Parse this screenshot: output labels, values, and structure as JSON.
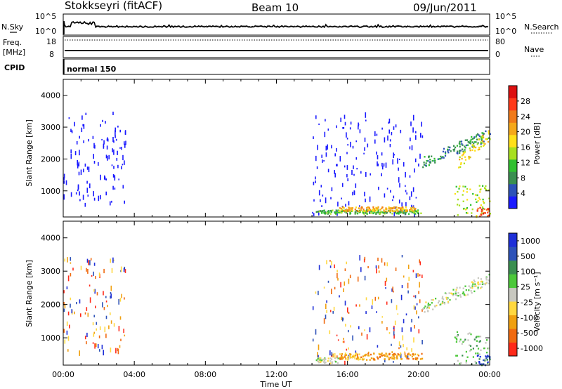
{
  "header": {
    "station": "Stokkseyri (fitACF)",
    "beam": "Beam 10",
    "date": "09/Jun/2011"
  },
  "summary_panels": {
    "noise": {
      "left_label": "N.Sky",
      "right_label": "N.Search",
      "top_tick": "10^5",
      "bottom_tick": "10^0"
    },
    "freq": {
      "left_label_1": "Freq.",
      "left_label_2": "[MHz]",
      "ticks": [
        "18",
        "8"
      ],
      "right_label": "Nave",
      "right_ticks": [
        "80",
        "0"
      ]
    },
    "cpid": {
      "label": "CPID",
      "mode": "normal 150"
    }
  },
  "colors": {
    "power": [
      "#1a1aff",
      "#2d52b8",
      "#3a8f50",
      "#31c130",
      "#a8e020",
      "#ffe01a",
      "#f5a81a",
      "#f07a1a",
      "#ff3a1a",
      "#dd1010"
    ],
    "velocity": [
      "#1e2fd8",
      "#2d52b8",
      "#3a8f50",
      "#4cc83a",
      "#c8c8c0",
      "#ffd840",
      "#f0a010",
      "#f06a10",
      "#ff2a1a"
    ]
  },
  "chart_data": [
    {
      "type": "heatmap",
      "name": "power",
      "ylabel": "Slant Range [km]",
      "ylim": [
        180,
        4500
      ],
      "yticks": [
        "1000",
        "2000",
        "3000",
        "4000"
      ],
      "xticks": [
        "00:00",
        "04:00",
        "08:00",
        "12:00",
        "16:00",
        "20:00",
        "00:00"
      ],
      "colorbar_label": "Power [dB]",
      "colorbar_ticks": [
        "4",
        "8",
        "12",
        "16",
        "20",
        "24",
        "28"
      ],
      "scatter_regions": [
        {
          "t": [
            0.0,
            3.5
          ],
          "r": [
            600,
            3500
          ],
          "level": 0
        },
        {
          "t": [
            14.0,
            20.2
          ],
          "r": [
            300,
            3500
          ],
          "level": 0
        }
      ],
      "regions": [
        {
          "t": [
            14.2,
            20.1
          ],
          "r": [
            300,
            420
          ],
          "level": 3
        },
        {
          "t": [
            15.5,
            19.8
          ],
          "r": [
            380,
            520
          ],
          "level": 6
        },
        {
          "t": [
            20.2,
            24.0
          ],
          "r": [
            1800,
            3100
          ],
          "level": 2
        },
        {
          "t": [
            22.2,
            24.0
          ],
          "r": [
            2400,
            3000
          ],
          "level": 5
        },
        {
          "t": [
            22.0,
            24.0
          ],
          "r": [
            200,
            1200
          ],
          "level": 4
        },
        {
          "t": [
            23.2,
            24.0
          ],
          "r": [
            200,
            500
          ],
          "level": 8
        }
      ]
    },
    {
      "type": "heatmap",
      "name": "velocity",
      "ylabel": "Slant Range [km]",
      "ylim": [
        180,
        4500
      ],
      "yticks": [
        "1000",
        "2000",
        "3000",
        "4000"
      ],
      "xticks": [
        "00:00",
        "04:00",
        "08:00",
        "12:00",
        "16:00",
        "20:00",
        "00:00"
      ],
      "xlabel": "Time UT",
      "colorbar_label": "Velocity [m s⁻¹]",
      "colorbar_ticks": [
        "1000",
        "500",
        "100",
        "25",
        "-25",
        "-100",
        "-500",
        "-1000"
      ],
      "scatter_regions": [
        {
          "t": [
            0.0,
            3.5
          ],
          "r": [
            600,
            3500
          ],
          "level": 6
        },
        {
          "t": [
            14.0,
            20.2
          ],
          "r": [
            300,
            3500
          ],
          "level": 6
        }
      ],
      "regions": [
        {
          "t": [
            14.2,
            15.5
          ],
          "r": [
            260,
            420
          ],
          "level": 4
        },
        {
          "t": [
            15.5,
            20.2
          ],
          "r": [
            360,
            560
          ],
          "level": 6
        },
        {
          "t": [
            20.2,
            24.0
          ],
          "r": [
            1800,
            3100
          ],
          "level": 4
        },
        {
          "t": [
            22.0,
            24.0
          ],
          "r": [
            200,
            1200
          ],
          "level": 3
        },
        {
          "t": [
            23.2,
            24.0
          ],
          "r": [
            200,
            500
          ],
          "level": 1
        }
      ]
    }
  ]
}
